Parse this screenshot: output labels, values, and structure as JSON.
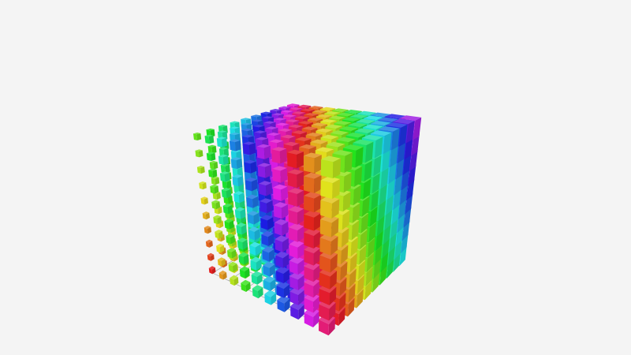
{
  "chart_data": {
    "type": "scatter3d",
    "symbol": "cube",
    "title": "",
    "xlabel": "",
    "ylabel": "",
    "zlabel": "",
    "grid": true,
    "axis_line_color": "#b0b0b0",
    "background": "#f4f4f4",
    "x": [
      0,
      1,
      2,
      3,
      4,
      5,
      6,
      7,
      8,
      9
    ],
    "y": [
      0,
      1,
      2,
      3,
      4,
      5,
      6,
      7,
      8,
      9
    ],
    "z": [
      0,
      1,
      2,
      3,
      4,
      5,
      6,
      7,
      8,
      9
    ],
    "color_by": "hue",
    "color_map": [
      "#e53935",
      "#e8833a",
      "#e5c93a",
      "#a8e53a",
      "#3ae54a",
      "#3ae5c8",
      "#3a9ee5",
      "#4a3ae5",
      "#a83ae5",
      "#e53ab5"
    ]
  }
}
